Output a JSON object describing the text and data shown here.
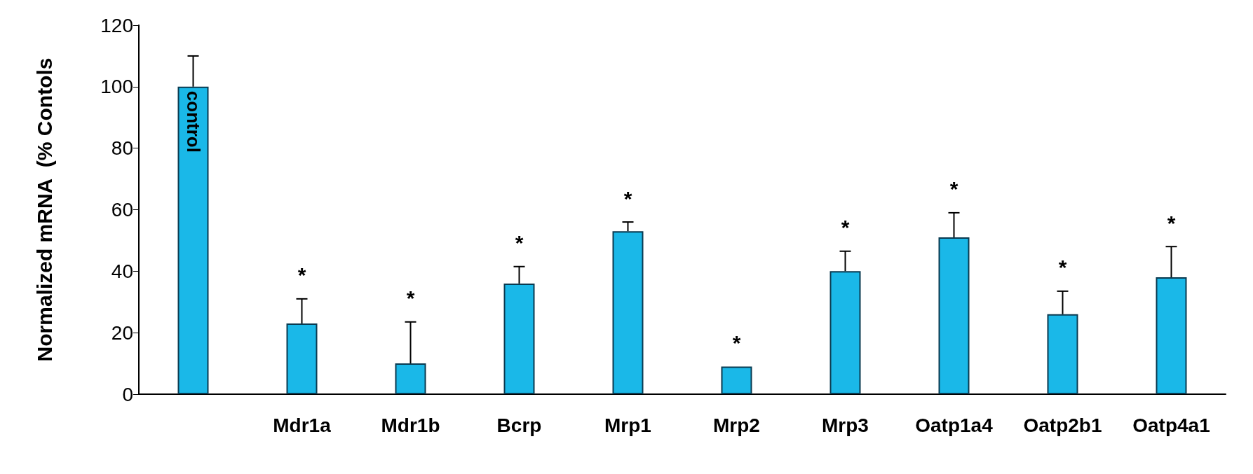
{
  "chart_data": {
    "type": "bar",
    "ylabel": "Normalized mRNA  (% Contols",
    "categories": [
      "control",
      "Mdr1a",
      "Mdr1b",
      "Bcrp",
      "Mrp1",
      "Mrp2",
      "Mrp3",
      "Oatp1a4",
      "Oatp2b1",
      "Oatp4a1"
    ],
    "values": [
      100,
      23,
      10,
      36,
      53,
      9,
      40,
      51,
      26,
      38
    ],
    "errors": [
      [
        100,
        110
      ],
      [
        23,
        31
      ],
      [
        10,
        23.5
      ],
      [
        36,
        41.5
      ],
      [
        53,
        56
      ],
      null,
      [
        40,
        46.5
      ],
      [
        51,
        59
      ],
      [
        26,
        33.5
      ],
      [
        38,
        48
      ]
    ],
    "color": "#1ab8e8",
    "ylim": [
      0,
      120
    ],
    "yticks": [
      0,
      20,
      40,
      60,
      80,
      100,
      120
    ],
    "grid": false,
    "annotations": [
      {
        "text": "*",
        "x": "Mdr1a",
        "y": 31
      },
      {
        "text": "*",
        "x": "Mdr1b",
        "y": 23.5
      },
      {
        "text": "*",
        "x": "Bcrp",
        "y": 41.5
      },
      {
        "text": "*",
        "x": "Mrp1",
        "y": 56
      },
      {
        "text": "*",
        "x": "Mrp2",
        "y": 9
      },
      {
        "text": "*",
        "x": "Mrp3",
        "y": 46.5
      },
      {
        "text": "*",
        "x": "Oatp1a4",
        "y": 59
      },
      {
        "text": "*",
        "x": "Oatp2b1",
        "y": 33.5
      },
      {
        "text": "*",
        "x": "Oatp4a1",
        "y": 48
      }
    ]
  }
}
